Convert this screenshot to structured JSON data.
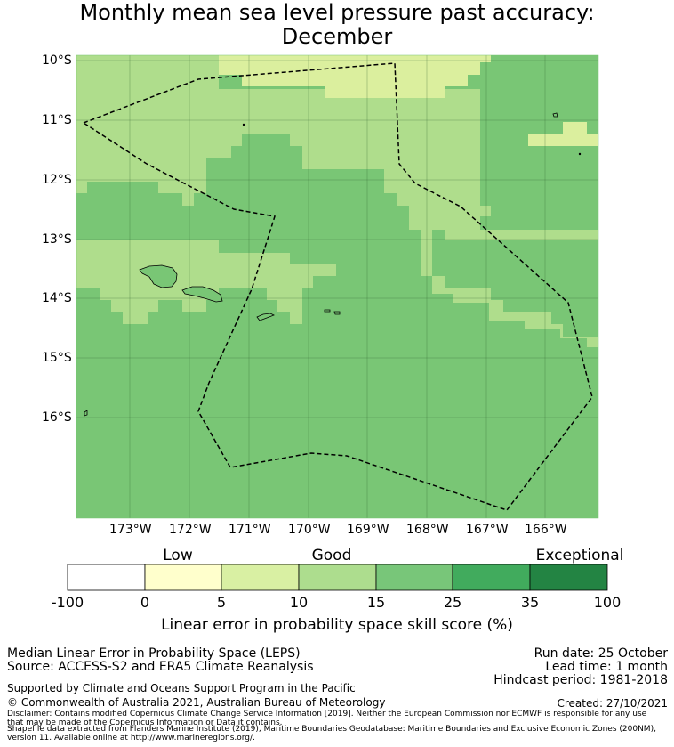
{
  "title": {
    "line1": "Monthly mean sea level pressure past accuracy:",
    "line2": "December"
  },
  "map": {
    "lat_labels": [
      "10°S",
      "11°S",
      "12°S",
      "13°S",
      "14°S",
      "15°S",
      "16°S"
    ],
    "lon_labels": [
      "173°W",
      "172°W",
      "171°W",
      "170°W",
      "169°W",
      "168°W",
      "167°W",
      "166°W"
    ],
    "boundary": "Maritime boundary (EEZ)",
    "land": [
      "Savai'i",
      "Upolu",
      "Tutuila",
      "Manu'a"
    ],
    "colors": {
      "light": "#dbef9e",
      "mid": "#afdd8c",
      "good": "#79c675",
      "grid": "#2f5f2f"
    }
  },
  "colorbar": {
    "categories": [
      "Low",
      "Good",
      "Exceptional"
    ],
    "ticks": [
      "-100",
      "0",
      "5",
      "10",
      "15",
      "25",
      "35",
      "100"
    ],
    "colors": [
      "#ffffff",
      "#ffffcc",
      "#d9f0a3",
      "#addd8e",
      "#78c679",
      "#41ab5d",
      "#238443"
    ],
    "label": "Linear error in probability space skill score (%)"
  },
  "footer": {
    "left1": "Median Linear Error in Probability Space (LEPS)",
    "left2": "Source: ACCESS-S2 and ERA5 Climate Reanalysis",
    "support": "Supported by Climate and Oceans Support Program in the Pacific",
    "copyright": "© Commonwealth of Australia 2021, Australian Bureau of Meteorology",
    "run_date": "Run date: 25 October",
    "lead_time": "Lead time: 1 month",
    "hindcast": "Hindcast period: 1981-2018",
    "created": "Created: 27/10/2021",
    "disclaimer1": "Disclaimer: Contains modified Copernicus Climate Change Service Information [2019]. Neither the European Commission nor ECMWF is responsible for any use",
    "disclaimer2": "that may be made of the Copernicus Information or Data it contains.",
    "shapefile1": "Shapefile data extracted from Flanders Marine Institute (2019), Maritime Boundaries Geodatabase: Maritime Boundaries and Exclusive Economic Zones (200NM),",
    "shapefile2": "version 11. Available online at http://www.marineregions.org/."
  }
}
